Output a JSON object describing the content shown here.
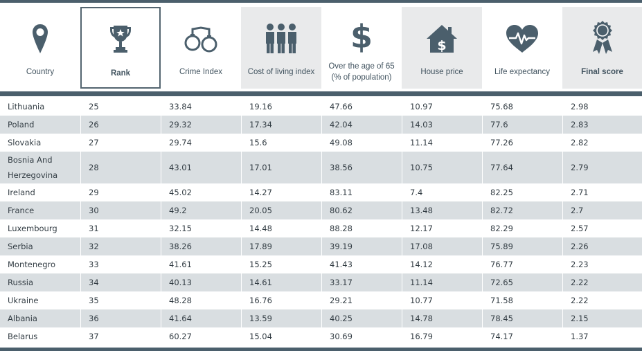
{
  "headers": [
    {
      "label": "Country",
      "icon": "location-pin-icon",
      "shaded": false,
      "bold": false
    },
    {
      "label": "Rank",
      "icon": "trophy-icon",
      "shaded": false,
      "bold": true
    },
    {
      "label": "Crime Index",
      "icon": "handcuffs-icon",
      "shaded": false,
      "bold": false
    },
    {
      "label": "Cost of living index",
      "icon": "people-group-icon",
      "shaded": true,
      "bold": false
    },
    {
      "label": "Over the age of 65 (% of population)",
      "icon": "dollar-icon",
      "shaded": false,
      "bold": false
    },
    {
      "label": "House price",
      "icon": "house-dollar-icon",
      "shaded": true,
      "bold": false
    },
    {
      "label": "Life expectancy",
      "icon": "heart-pulse-icon",
      "shaded": false,
      "bold": false
    },
    {
      "label": "Final score",
      "icon": "award-ribbon-icon",
      "shaded": true,
      "bold": true
    }
  ],
  "colors": {
    "icon": "#4b5f6c",
    "rule": "#4b5f6c",
    "row_alt": "#d9dee1",
    "header_shade": "#e9eaeb"
  },
  "rows": [
    [
      "Lithuania",
      "25",
      "33.84",
      "19.16",
      "47.66",
      "10.97",
      "75.68",
      "2.98"
    ],
    [
      "Poland",
      "26",
      "29.32",
      "17.34",
      "42.04",
      "14.03",
      "77.6",
      "2.83"
    ],
    [
      "Slovakia",
      "27",
      "29.74",
      "15.6",
      "49.08",
      "11.14",
      "77.26",
      "2.82"
    ],
    [
      "Bosnia And Herzegovina",
      "28",
      "43.01",
      "17.01",
      "38.56",
      "10.75",
      "77.64",
      "2.79"
    ],
    [
      "Ireland",
      "29",
      "45.02",
      "14.27",
      "83.11",
      "7.4",
      "82.25",
      "2.71"
    ],
    [
      "France",
      "30",
      "49.2",
      "20.05",
      "80.62",
      "13.48",
      "82.72",
      "2.7"
    ],
    [
      "Luxembourg",
      "31",
      "32.15",
      "14.48",
      "88.28",
      "12.17",
      "82.29",
      "2.57"
    ],
    [
      "Serbia",
      "32",
      "38.26",
      "17.89",
      "39.19",
      "17.08",
      "75.89",
      "2.26"
    ],
    [
      "Montenegro",
      "33",
      "41.61",
      "15.25",
      "41.43",
      "14.12",
      "76.77",
      "2.23"
    ],
    [
      "Russia",
      "34",
      "40.13",
      "14.61",
      "33.17",
      "11.14",
      "72.65",
      "2.22"
    ],
    [
      "Ukraine",
      "35",
      "48.28",
      "16.76",
      "29.21",
      "10.77",
      "71.58",
      "2.22"
    ],
    [
      "Albania",
      "36",
      "41.64",
      "13.59",
      "40.25",
      "14.78",
      "78.45",
      "2.15"
    ],
    [
      "Belarus",
      "37",
      "60.27",
      "15.04",
      "30.69",
      "16.79",
      "74.17",
      "1.37"
    ]
  ]
}
